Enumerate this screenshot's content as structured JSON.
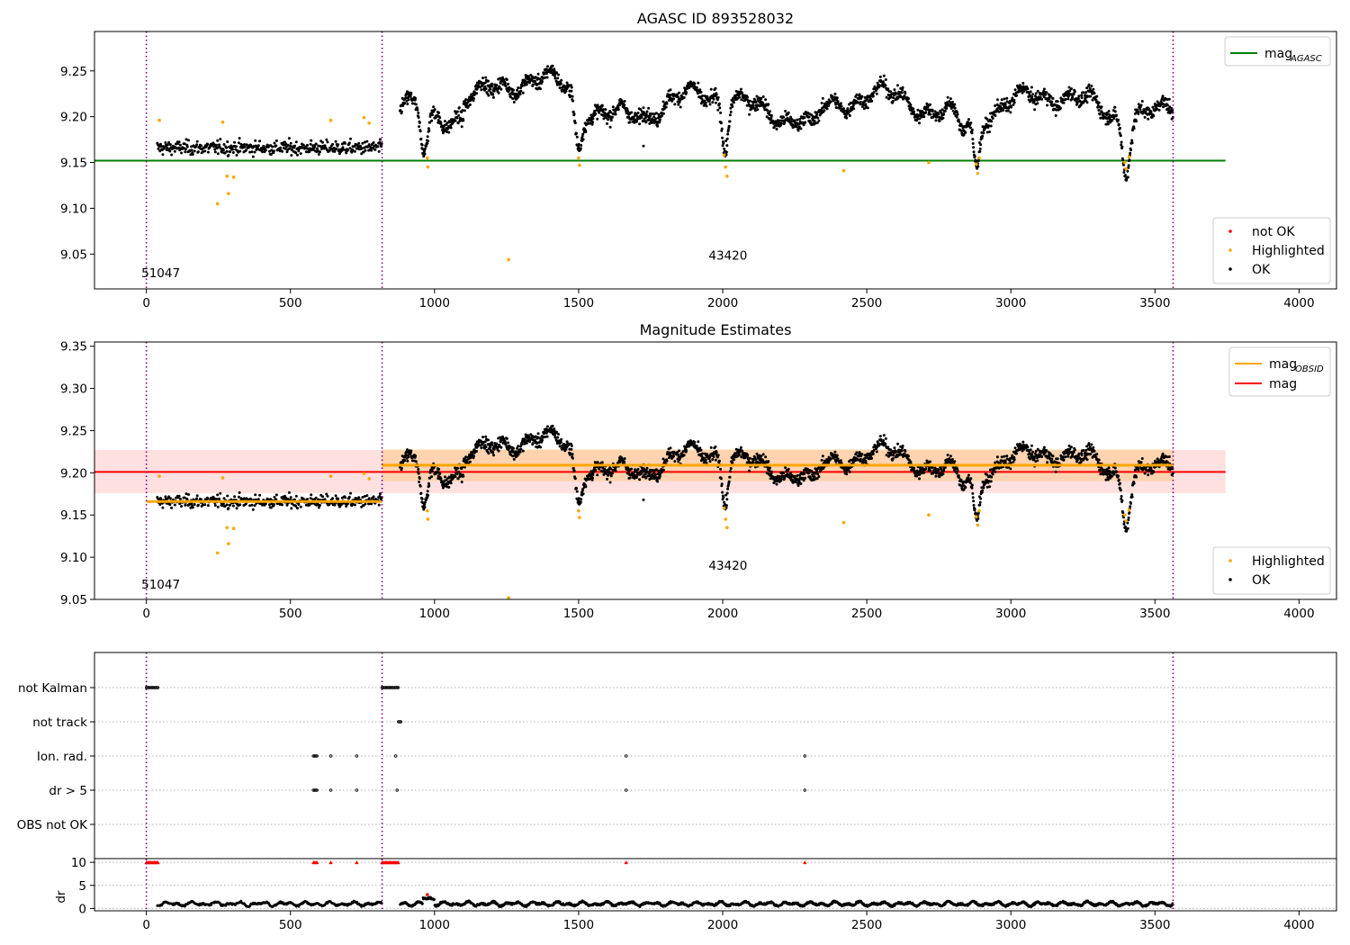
{
  "chart_data": [
    {
      "type": "scatter",
      "title": "AGASC ID 893528032",
      "xlim": [
        -180,
        4130
      ],
      "ylim": [
        9.012,
        9.293
      ],
      "xticks": [
        0,
        500,
        1000,
        1500,
        2000,
        2500,
        3000,
        3500,
        4000
      ],
      "xtick_labels": [
        "0",
        "500",
        "1000",
        "1500",
        "2000",
        "2500",
        "3000",
        "3500",
        "4000"
      ],
      "yticks": [
        9.05,
        9.1,
        9.15,
        9.2,
        9.25
      ],
      "ytick_labels": [
        "9.05",
        "9.10",
        "9.15",
        "9.20",
        "9.25"
      ],
      "obs_boundaries": [
        0,
        818,
        3563
      ],
      "obs_labels": [
        {
          "text": "51047",
          "x": 409,
          "y": 9.025
        },
        {
          "text": "43420",
          "x": 2190,
          "y": 9.044
        }
      ],
      "mag_agasc": {
        "value": 9.152,
        "x_range": [
          0,
          3745
        ]
      },
      "legend_top": [
        {
          "label_main": "mag",
          "label_sub": "AGASC",
          "color": "#008000"
        }
      ],
      "legend_bottom": [
        {
          "label": "not OK",
          "color": "#ff0000"
        },
        {
          "label": "Highlighted",
          "color": "#ffa500"
        },
        {
          "label": "OK",
          "color": "#000000"
        }
      ],
      "legend_placement": "top-right / bottom-right",
      "highlighted_points": [
        {
          "x": 45,
          "y": 9.196
        },
        {
          "x": 247,
          "y": 9.105
        },
        {
          "x": 265,
          "y": 9.194
        },
        {
          "x": 280,
          "y": 9.135
        },
        {
          "x": 285,
          "y": 9.116
        },
        {
          "x": 303,
          "y": 9.134
        },
        {
          "x": 640,
          "y": 9.196
        },
        {
          "x": 755,
          "y": 9.199
        },
        {
          "x": 773,
          "y": 9.193
        },
        {
          "x": 975,
          "y": 9.155
        },
        {
          "x": 977,
          "y": 9.145
        },
        {
          "x": 1257,
          "y": 9.044
        },
        {
          "x": 1500,
          "y": 9.155
        },
        {
          "x": 1503,
          "y": 9.147
        },
        {
          "x": 2005,
          "y": 9.158
        },
        {
          "x": 2010,
          "y": 9.145
        },
        {
          "x": 2015,
          "y": 9.135
        },
        {
          "x": 2420,
          "y": 9.141
        },
        {
          "x": 2715,
          "y": 9.15
        },
        {
          "x": 2880,
          "y": 9.148
        },
        {
          "x": 2885,
          "y": 9.138
        },
        {
          "x": 2890,
          "y": 9.155
        },
        {
          "x": 3395,
          "y": 9.15
        },
        {
          "x": 3400,
          "y": 9.143
        },
        {
          "x": 3410,
          "y": 9.156
        }
      ]
    },
    {
      "type": "scatter",
      "title": "Magnitude Estimates",
      "xlim": [
        -180,
        4130
      ],
      "ylim": [
        9.05,
        9.355
      ],
      "xticks": [
        0,
        500,
        1000,
        1500,
        2000,
        2500,
        3000,
        3500,
        4000
      ],
      "xtick_labels": [
        "0",
        "500",
        "1000",
        "1500",
        "2000",
        "2500",
        "3000",
        "3500",
        "4000"
      ],
      "yticks": [
        9.05,
        9.1,
        9.15,
        9.2,
        9.25,
        9.3,
        9.35
      ],
      "ytick_labels": [
        "9.05",
        "9.10",
        "9.15",
        "9.20",
        "9.25",
        "9.30",
        "9.35"
      ],
      "obs_boundaries": [
        0,
        818,
        3563
      ],
      "obs_labels": [
        {
          "text": "51047",
          "x": 409,
          "y": 9.063
        },
        {
          "text": "43420",
          "x": 2190,
          "y": 9.085
        }
      ],
      "mag": {
        "value": 9.201,
        "band": [
          9.176,
          9.227
        ],
        "x_range": [
          0,
          3745
        ]
      },
      "mag_obsid": [
        {
          "value": 9.166,
          "x_range": [
            0,
            818
          ]
        },
        {
          "value": 9.209,
          "band": [
            9.19,
            9.228
          ],
          "x_range": [
            818,
            3563
          ]
        }
      ],
      "legend_top": [
        {
          "label_main": "mag",
          "label_sub": "OBSID",
          "color": "#ffa500"
        },
        {
          "label_main": "mag",
          "label_sub": "",
          "color": "#ff0000"
        }
      ],
      "legend_bottom": [
        {
          "label": "Highlighted",
          "color": "#ffa500"
        },
        {
          "label": "OK",
          "color": "#000000"
        }
      ],
      "legend_placement": "top-right / bottom-right"
    },
    {
      "type": "scatter",
      "xlim": [
        -180,
        4130
      ],
      "xticks": [
        0,
        500,
        1000,
        1500,
        2000,
        2500,
        3000,
        3500,
        4000
      ],
      "xtick_labels": [
        "0",
        "500",
        "1000",
        "1500",
        "2000",
        "2500",
        "3000",
        "3500",
        "4000"
      ],
      "flag_rows": [
        "not Kalman",
        "not track",
        "Ion. rad.",
        "dr > 5",
        "OBS not OK"
      ],
      "flag_points": {
        "not Kalman": [
          [
            0,
            40
          ],
          [
            818,
            875
          ]
        ],
        "not track": [
          [
            875,
            885
          ]
        ],
        "Ion. rad.": [
          [
            580,
            595
          ],
          [
            640,
            640
          ],
          [
            730,
            730
          ],
          [
            865,
            865
          ],
          [
            1665,
            1665
          ],
          [
            2285,
            2285
          ]
        ],
        "dr > 5": [
          [
            580,
            595
          ],
          [
            640,
            640
          ],
          [
            730,
            730
          ],
          [
            870,
            870
          ],
          [
            1665,
            1665
          ],
          [
            2285,
            2285
          ]
        ],
        "OBS not OK": []
      },
      "dr_axis": {
        "ylabel": "dr",
        "ylim": [
          -0.5,
          10.8
        ],
        "yticks": [
          0,
          5,
          10
        ],
        "ytick_labels": [
          "0",
          "5",
          "10"
        ]
      },
      "dr_clipped_points": [
        [
          0,
          40
        ],
        [
          580,
          595
        ],
        [
          640,
          640
        ],
        [
          730,
          730
        ],
        [
          818,
          875
        ],
        [
          1665,
          1665
        ],
        [
          2285,
          2285
        ]
      ]
    }
  ]
}
